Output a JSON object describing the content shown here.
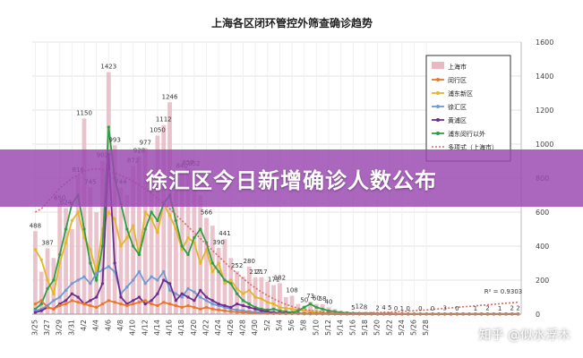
{
  "banner": {
    "headline": "徐汇区今日新增确诊人数公布"
  },
  "watermark": "知乎 @似水浮木",
  "chart_data": {
    "type": "bar+line",
    "title": "上海各区闭环管控外筛查确诊趋势",
    "x_tick_labels": [
      "3/25",
      "3/27",
      "3/29",
      "3/31",
      "4/2",
      "4/4",
      "4/6",
      "4/8",
      "4/10",
      "4/12",
      "4/14",
      "4/16",
      "4/18",
      "4/20",
      "4/22",
      "4/24",
      "4/26",
      "4/28",
      "4/30",
      "5/2",
      "5/4",
      "5/6",
      "5/8",
      "5/10",
      "5/12",
      "5/14",
      "5/16",
      "5/18",
      "5/20",
      "5/22",
      "5/24",
      "5/26",
      "5/28"
    ],
    "y_right_ticks": [
      0,
      200,
      400,
      600,
      800,
      1000,
      1200,
      1400,
      1600
    ],
    "ylim": [
      0,
      1600
    ],
    "legend": [
      {
        "name": "上海市",
        "color": "#e8b9c3"
      },
      {
        "name": "闵行区",
        "color": "#e8772e"
      },
      {
        "name": "浦东新区",
        "color": "#e6b52c"
      },
      {
        "name": "徐汇区",
        "color": "#6f9ad6"
      },
      {
        "name": "黄浦区",
        "color": "#6a2f8f"
      },
      {
        "name": "浦东闵行以外",
        "color": "#2f9e44"
      },
      {
        "name": "多项式（上海市）",
        "color": "#d96a6a"
      }
    ],
    "series": [
      {
        "name": "上海市",
        "style": "bar",
        "color": "#e8b9c3",
        "values": [
          488,
          250,
          387,
          330,
          650,
          624,
          500,
          816,
          1150,
          745,
          600,
          902,
          1423,
          993,
          744,
          700,
          872,
          928,
          977,
          850,
          1050,
          1112,
          1246,
          800,
          840,
          857,
          852,
          700,
          566,
          520,
          390,
          441,
          330,
          252,
          220,
          280,
          217,
          217,
          190,
          171,
          182,
          100,
          108,
          60,
          50,
          73,
          60,
          58,
          40,
          30,
          20,
          15,
          5,
          12,
          8,
          5,
          2,
          4,
          5,
          0,
          1,
          0,
          0,
          0,
          0,
          0,
          0,
          3,
          0,
          0,
          0,
          0,
          1,
          0,
          2,
          0,
          1,
          0,
          2,
          2
        ]
      },
      {
        "name": "浦东新区",
        "style": "line",
        "color": "#e6b52c",
        "values": [
          380,
          320,
          200,
          120,
          300,
          420,
          550,
          600,
          450,
          380,
          250,
          500,
          600,
          560,
          400,
          450,
          520,
          350,
          600,
          560,
          480,
          650,
          580,
          500,
          380,
          450,
          420,
          300,
          380,
          250,
          300,
          180,
          200,
          150,
          120,
          140,
          100,
          90,
          70,
          60,
          40,
          35,
          30,
          25,
          20,
          15,
          10,
          8,
          6,
          5,
          3,
          2,
          2,
          1,
          1,
          1,
          0,
          1,
          0,
          0,
          1,
          0,
          0,
          0,
          0,
          0,
          0,
          0,
          0,
          0,
          0,
          0,
          0,
          0,
          0,
          0,
          0,
          0,
          0,
          0
        ]
      },
      {
        "name": "浦东闵行以外",
        "style": "line",
        "color": "#2f9e44",
        "values": [
          30,
          60,
          150,
          200,
          350,
          500,
          650,
          700,
          500,
          300,
          200,
          400,
          1100,
          800,
          650,
          500,
          400,
          350,
          500,
          600,
          550,
          650,
          700,
          550,
          400,
          350,
          450,
          500,
          420,
          300,
          250,
          200,
          180,
          120,
          80,
          60,
          40,
          30,
          25,
          30,
          20,
          15,
          10,
          20,
          40,
          60,
          40,
          30,
          20,
          15,
          10,
          8,
          6,
          5,
          4,
          4,
          3,
          3,
          3,
          2,
          2,
          2,
          2,
          2,
          2,
          2,
          2,
          2,
          2,
          2,
          2,
          2,
          2,
          2,
          2,
          2,
          2,
          2,
          2,
          2
        ]
      },
      {
        "name": "徐汇区",
        "style": "line",
        "color": "#6f9ad6",
        "values": [
          20,
          30,
          50,
          80,
          100,
          140,
          180,
          200,
          220,
          180,
          240,
          260,
          280,
          250,
          120,
          160,
          200,
          250,
          180,
          220,
          200,
          250,
          140,
          120,
          100,
          150,
          130,
          100,
          80,
          60,
          50,
          40,
          30,
          25,
          20,
          15,
          12,
          10,
          8,
          6,
          5,
          4,
          3,
          3,
          2,
          2,
          2,
          2,
          1,
          1,
          1,
          1,
          1,
          1,
          1,
          1,
          1,
          1,
          1,
          1,
          0,
          0,
          0,
          0,
          0,
          0,
          0,
          0,
          0,
          0,
          0,
          0,
          0,
          0,
          0,
          0,
          0,
          0,
          0,
          0
        ]
      },
      {
        "name": "黄浦区",
        "style": "line",
        "color": "#6a2f8f",
        "values": [
          10,
          20,
          40,
          30,
          60,
          80,
          120,
          100,
          60,
          80,
          100,
          180,
          940,
          300,
          100,
          60,
          80,
          100,
          60,
          80,
          120,
          200,
          180,
          80,
          120,
          100,
          80,
          140,
          100,
          80,
          60,
          50,
          40,
          60,
          50,
          40,
          30,
          20,
          15,
          10,
          8,
          6,
          5,
          4,
          3,
          3,
          2,
          2,
          2,
          1,
          1,
          1,
          1,
          1,
          1,
          1,
          0,
          0,
          0,
          0,
          0,
          0,
          0,
          0,
          0,
          0,
          0,
          0,
          0,
          0,
          0,
          0,
          0,
          0,
          0,
          0,
          0,
          0,
          0,
          0
        ]
      },
      {
        "name": "闵行区",
        "style": "line",
        "color": "#e8772e",
        "values": [
          60,
          80,
          40,
          30,
          50,
          60,
          80,
          70,
          60,
          50,
          40,
          60,
          80,
          70,
          60,
          50,
          60,
          70,
          80,
          60,
          50,
          70,
          60,
          50,
          40,
          50,
          40,
          30,
          40,
          30,
          25,
          20,
          15,
          12,
          10,
          8,
          6,
          5,
          4,
          3,
          3,
          2,
          2,
          2,
          1,
          1,
          1,
          1,
          1,
          1,
          1,
          0,
          0,
          0,
          0,
          0,
          0,
          0,
          0,
          0,
          0,
          0,
          0,
          0,
          0,
          0,
          0,
          0,
          0,
          0,
          0,
          0,
          0,
          0,
          0,
          0,
          0,
          0,
          0,
          0
        ]
      },
      {
        "name": "多项式（上海市）",
        "style": "dashed-trend",
        "color": "#d96a6a",
        "values": [
          600,
          620,
          660,
          700,
          740,
          770,
          800,
          820,
          840,
          850,
          855,
          850,
          840,
          830,
          815,
          800,
          780,
          760,
          735,
          710,
          680,
          650,
          620,
          585,
          550,
          515,
          480,
          445,
          410,
          375,
          340,
          305,
          270,
          240,
          210,
          180,
          155,
          130,
          110,
          90,
          72,
          58,
          45,
          35,
          28,
          22,
          18,
          15,
          12,
          10,
          9,
          8,
          8,
          8,
          8,
          9,
          10,
          11,
          12,
          14,
          16,
          18,
          20,
          22,
          25,
          28,
          31,
          34,
          37,
          40,
          43,
          46,
          49,
          52,
          55,
          58,
          61,
          64,
          67,
          70
        ]
      }
    ],
    "data_labels": [
      {
        "i": 0,
        "text": "488"
      },
      {
        "i": 2,
        "text": "387"
      },
      {
        "i": 4,
        "text": "650"
      },
      {
        "i": 5,
        "text": "624"
      },
      {
        "i": 7,
        "text": "816"
      },
      {
        "i": 8,
        "text": "1150"
      },
      {
        "i": 9,
        "text": "745"
      },
      {
        "i": 11,
        "text": "902"
      },
      {
        "i": 12,
        "text": "1423"
      },
      {
        "i": 13,
        "text": "993"
      },
      {
        "i": 14,
        "text": "744"
      },
      {
        "i": 16,
        "text": "872"
      },
      {
        "i": 17,
        "text": "928"
      },
      {
        "i": 18,
        "text": "977"
      },
      {
        "i": 20,
        "text": "1050"
      },
      {
        "i": 21,
        "text": "1112"
      },
      {
        "i": 22,
        "text": "1246"
      },
      {
        "i": 24,
        "text": "840"
      },
      {
        "i": 25,
        "text": "857"
      },
      {
        "i": 26,
        "text": "852"
      },
      {
        "i": 28,
        "text": "566"
      },
      {
        "i": 30,
        "text": "390"
      },
      {
        "i": 31,
        "text": "441"
      },
      {
        "i": 33,
        "text": "252"
      },
      {
        "i": 35,
        "text": "280"
      },
      {
        "i": 36,
        "text": "217"
      },
      {
        "i": 37,
        "text": "217"
      },
      {
        "i": 39,
        "text": "171"
      },
      {
        "i": 40,
        "text": "182"
      },
      {
        "i": 42,
        "text": "108"
      },
      {
        "i": 44,
        "text": "50"
      },
      {
        "i": 45,
        "text": "73"
      },
      {
        "i": 46,
        "text": "60"
      },
      {
        "i": 47,
        "text": "58"
      },
      {
        "i": 48,
        "text": "40"
      },
      {
        "i": 52,
        "text": "5"
      },
      {
        "i": 53,
        "text": "12"
      },
      {
        "i": 54,
        "text": "8"
      },
      {
        "i": 56,
        "text": "2"
      },
      {
        "i": 57,
        "text": "4"
      },
      {
        "i": 58,
        "text": "5"
      },
      {
        "i": 59,
        "text": "0"
      },
      {
        "i": 60,
        "text": "1"
      },
      {
        "i": 61,
        "text": "0"
      },
      {
        "i": 63,
        "text": "0"
      },
      {
        "i": 65,
        "text": "0"
      },
      {
        "i": 67,
        "text": "3"
      },
      {
        "i": 69,
        "text": "0"
      },
      {
        "i": 72,
        "text": "1"
      },
      {
        "i": 74,
        "text": "2"
      },
      {
        "i": 76,
        "text": "1"
      },
      {
        "i": 78,
        "text": "2"
      },
      {
        "i": 79,
        "text": "2"
      }
    ],
    "r_squared_label": "R² = 0.9303"
  }
}
